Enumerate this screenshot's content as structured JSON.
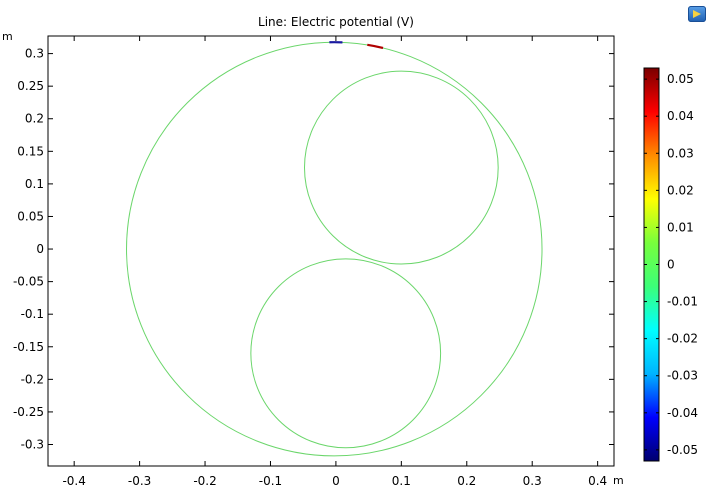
{
  "chart_data": {
    "type": "line",
    "title": "Line: Electric potential (V)",
    "x_unit": "m",
    "y_unit": "m",
    "xlim": [
      -0.44,
      0.425
    ],
    "ylim": [
      -0.333,
      0.327
    ],
    "x_ticks": [
      -0.4,
      -0.3,
      -0.2,
      -0.1,
      0,
      0.1,
      0.2,
      0.3,
      0.4
    ],
    "x_tick_labels": [
      "-0.4",
      "-0.3",
      "-0.2",
      "-0.1",
      "0",
      "0.1",
      "0.2",
      "0.3",
      "0.4"
    ],
    "y_ticks": [
      0.3,
      0.25,
      0.2,
      0.15,
      0.1,
      0.05,
      0,
      -0.05,
      -0.1,
      -0.15,
      -0.2,
      -0.25,
      -0.3
    ],
    "y_tick_labels": [
      "0.3",
      "0.25",
      "0.2",
      "0.15",
      "0.1",
      "0.05",
      "0",
      "-0.05",
      "-0.1",
      "-0.15",
      "-0.2",
      "-0.25",
      "-0.3"
    ],
    "grid": false,
    "geometry": [
      {
        "name": "outer-boundary",
        "cx": -0.0025,
        "cy": 0.0,
        "r": 0.3175,
        "potential": 0
      },
      {
        "name": "upper-conductor",
        "cx": 0.1,
        "cy": 0.125,
        "r": 0.148,
        "potential": 0
      },
      {
        "name": "lower-conductor",
        "cx": 0.015,
        "cy": -0.16,
        "r": 0.145,
        "potential": 0
      }
    ],
    "hotspots": [
      {
        "name": "negative-hotspot",
        "x_range": [
          -0.01,
          0.01
        ],
        "y": 0.317,
        "potential": -0.053
      },
      {
        "name": "positive-hotspot",
        "x_range": [
          0.048,
          0.072
        ],
        "y": 0.313,
        "potential": 0.053
      }
    ],
    "colorbar": {
      "range": [
        -0.053,
        0.053
      ],
      "ticks": [
        0.05,
        0.04,
        0.03,
        0.02,
        0.01,
        0,
        -0.01,
        -0.02,
        -0.03,
        -0.04,
        -0.05
      ],
      "tick_labels": [
        "0.05",
        "0.04",
        "0.03",
        "0.02",
        "0.01",
        "0",
        "-0.01",
        "-0.02",
        "-0.03",
        "-0.04",
        "-0.05"
      ],
      "colormap": [
        "#00006e",
        "#0000ff",
        "#00b4ff",
        "#00ffff",
        "#3cff78",
        "#78ff3c",
        "#ffff00",
        "#ff8c00",
        "#ff0000",
        "#7a0000"
      ]
    },
    "colors": {
      "zero_level": "#6bd66b",
      "negative": "#1a1aa0",
      "positive": "#b00000",
      "frame": "#000000"
    }
  }
}
